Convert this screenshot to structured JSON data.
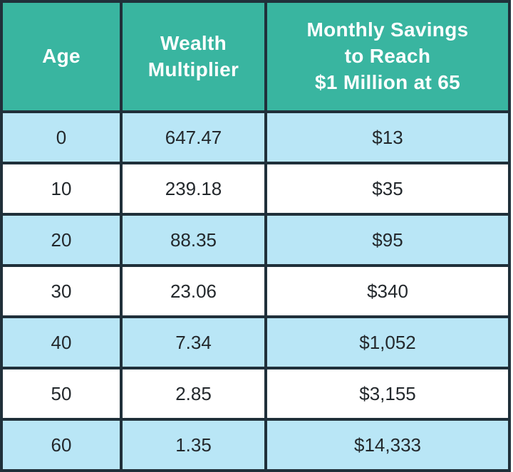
{
  "colors": {
    "header_background": "#39b5a0",
    "header_text": "#ffffff",
    "row_stripe_blue": "#b9e6f6",
    "row_stripe_white": "#ffffff",
    "border": "#20303a",
    "cell_text": "#23282c"
  },
  "table": {
    "columns": [
      {
        "label": "Age"
      },
      {
        "label": "Wealth\nMultiplier"
      },
      {
        "label": "Monthly Savings\nto Reach\n$1 Million at 65"
      }
    ],
    "rows": [
      {
        "age": "0",
        "multiplier": "647.47",
        "savings": "$13"
      },
      {
        "age": "10",
        "multiplier": "239.18",
        "savings": "$35"
      },
      {
        "age": "20",
        "multiplier": "88.35",
        "savings": "$95"
      },
      {
        "age": "30",
        "multiplier": "23.06",
        "savings": "$340"
      },
      {
        "age": "40",
        "multiplier": "7.34",
        "savings": "$1,052"
      },
      {
        "age": "50",
        "multiplier": "2.85",
        "savings": "$3,155"
      },
      {
        "age": "60",
        "multiplier": "1.35",
        "savings": "$14,333"
      }
    ]
  },
  "chart_data": {
    "type": "table",
    "title": "",
    "columns": [
      "Age",
      "Wealth Multiplier",
      "Monthly Savings to Reach $1 Million at 65"
    ],
    "rows": [
      [
        0,
        647.47,
        "$13"
      ],
      [
        10,
        239.18,
        "$35"
      ],
      [
        20,
        88.35,
        "$95"
      ],
      [
        30,
        23.06,
        "$340"
      ],
      [
        40,
        7.34,
        "$1,052"
      ],
      [
        50,
        2.85,
        "$3,155"
      ],
      [
        60,
        1.35,
        "$14,333"
      ]
    ]
  }
}
